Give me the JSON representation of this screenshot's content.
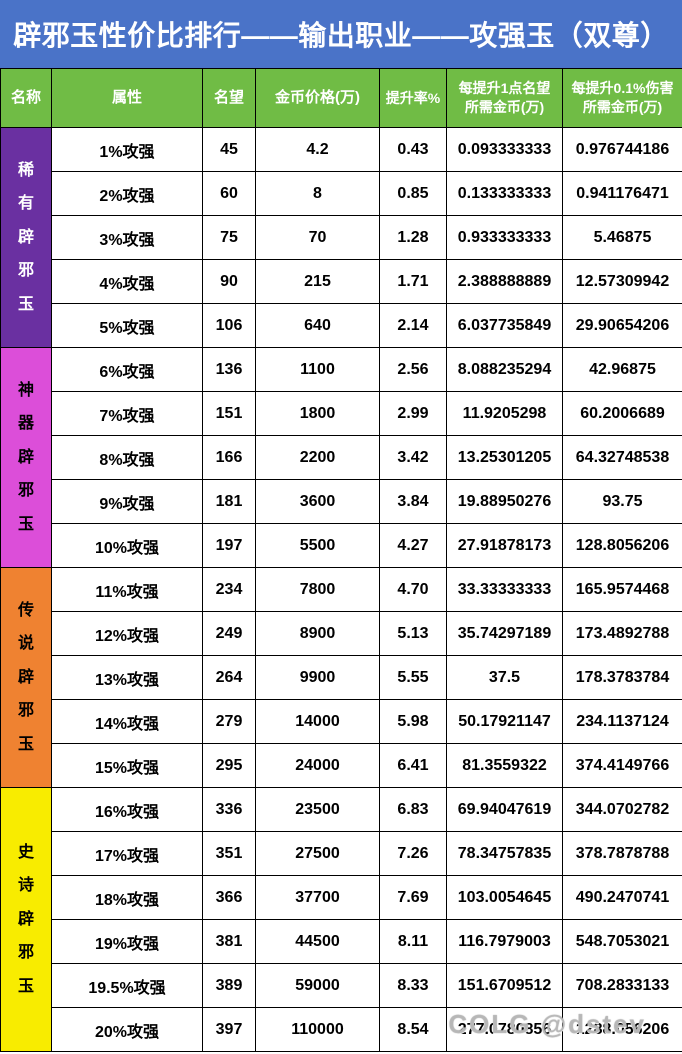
{
  "title": "辟邪玉性价比排行——输出职业——攻强玉（双尊）",
  "watermark": "COLG @dstev",
  "columns": [
    "名称",
    "属性",
    "名望",
    "金币价格(万)",
    "提升率%",
    "每提升1点名望\n所需金币(万)",
    "每提升0.1%伤害\n所需金币(万)"
  ],
  "colors": {
    "title_bg": "#4a73c8",
    "header_bg": "#70bc45",
    "rare": "#6a30a1",
    "artifact": "#dc4ed9",
    "legend": "#ef8231",
    "epic": "#f8ec00"
  },
  "groups": [
    {
      "name": "稀有辟邪玉",
      "color": "#6a30a1",
      "text_color": "#ffffff",
      "rows": [
        {
          "attr": "1%攻强",
          "fame": "45",
          "price": "4.2",
          "rate": "0.43",
          "per_fame": "0.093333333",
          "per_damage": "0.976744186"
        },
        {
          "attr": "2%攻强",
          "fame": "60",
          "price": "8",
          "rate": "0.85",
          "per_fame": "0.133333333",
          "per_damage": "0.941176471"
        },
        {
          "attr": "3%攻强",
          "fame": "75",
          "price": "70",
          "rate": "1.28",
          "per_fame": "0.933333333",
          "per_damage": "5.46875"
        },
        {
          "attr": "4%攻强",
          "fame": "90",
          "price": "215",
          "rate": "1.71",
          "per_fame": "2.388888889",
          "per_damage": "12.57309942"
        },
        {
          "attr": "5%攻强",
          "fame": "106",
          "price": "640",
          "rate": "2.14",
          "per_fame": "6.037735849",
          "per_damage": "29.90654206"
        }
      ]
    },
    {
      "name": "神器辟邪玉",
      "color": "#dc4ed9",
      "text_color": "#000000",
      "rows": [
        {
          "attr": "6%攻强",
          "fame": "136",
          "price": "1100",
          "rate": "2.56",
          "per_fame": "8.088235294",
          "per_damage": "42.96875"
        },
        {
          "attr": "7%攻强",
          "fame": "151",
          "price": "1800",
          "rate": "2.99",
          "per_fame": "11.9205298",
          "per_damage": "60.2006689"
        },
        {
          "attr": "8%攻强",
          "fame": "166",
          "price": "2200",
          "rate": "3.42",
          "per_fame": "13.25301205",
          "per_damage": "64.32748538"
        },
        {
          "attr": "9%攻强",
          "fame": "181",
          "price": "3600",
          "rate": "3.84",
          "per_fame": "19.88950276",
          "per_damage": "93.75"
        },
        {
          "attr": "10%攻强",
          "fame": "197",
          "price": "5500",
          "rate": "4.27",
          "per_fame": "27.91878173",
          "per_damage": "128.8056206"
        }
      ]
    },
    {
      "name": "传说辟邪玉",
      "color": "#ef8231",
      "text_color": "#000000",
      "rows": [
        {
          "attr": "11%攻强",
          "fame": "234",
          "price": "7800",
          "rate": "4.70",
          "per_fame": "33.33333333",
          "per_damage": "165.9574468"
        },
        {
          "attr": "12%攻强",
          "fame": "249",
          "price": "8900",
          "rate": "5.13",
          "per_fame": "35.74297189",
          "per_damage": "173.4892788"
        },
        {
          "attr": "13%攻强",
          "fame": "264",
          "price": "9900",
          "rate": "5.55",
          "per_fame": "37.5",
          "per_damage": "178.3783784"
        },
        {
          "attr": "14%攻强",
          "fame": "279",
          "price": "14000",
          "rate": "5.98",
          "per_fame": "50.17921147",
          "per_damage": "234.1137124"
        },
        {
          "attr": "15%攻强",
          "fame": "295",
          "price": "24000",
          "rate": "6.41",
          "per_fame": "81.3559322",
          "per_damage": "374.4149766"
        }
      ]
    },
    {
      "name": "史诗辟邪玉",
      "color": "#f8ec00",
      "text_color": "#000000",
      "rows": [
        {
          "attr": "16%攻强",
          "fame": "336",
          "price": "23500",
          "rate": "6.83",
          "per_fame": "69.94047619",
          "per_damage": "344.0702782"
        },
        {
          "attr": "17%攻强",
          "fame": "351",
          "price": "27500",
          "rate": "7.26",
          "per_fame": "78.34757835",
          "per_damage": "378.7878788"
        },
        {
          "attr": "18%攻强",
          "fame": "366",
          "price": "37700",
          "rate": "7.69",
          "per_fame": "103.0054645",
          "per_damage": "490.2470741"
        },
        {
          "attr": "19%攻强",
          "fame": "381",
          "price": "44500",
          "rate": "8.11",
          "per_fame": "116.7979003",
          "per_damage": "548.7053021"
        },
        {
          "attr": "19.5%攻强",
          "fame": "389",
          "price": "59000",
          "rate": "8.33",
          "per_fame": "151.6709512",
          "per_damage": "708.2833133"
        },
        {
          "attr": "20%攻强",
          "fame": "397",
          "price": "110000",
          "rate": "8.54",
          "per_fame": "277.0780856",
          "per_damage": "1288.056206"
        }
      ]
    }
  ]
}
